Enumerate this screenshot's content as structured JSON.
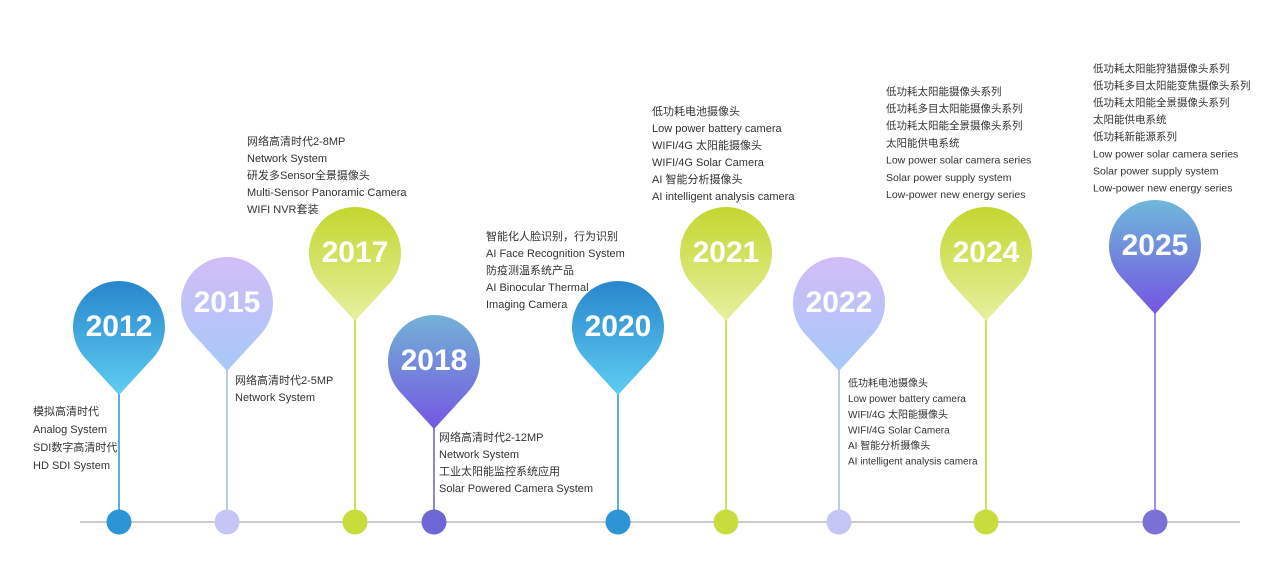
{
  "milestones": [
    {
      "year": "2012",
      "lines": [
        "模拟高清时代",
        "Analog System",
        "SDI数字高清时代",
        "HD SDI System"
      ]
    },
    {
      "year": "2015",
      "lines": [
        "网络高清时代2-5MP",
        "Network System"
      ]
    },
    {
      "year": "2017",
      "lines": [
        "网络高清时代2-8MP",
        "Network System",
        "研发多Sensor全景摄像头",
        "Multi-Sensor Panoramic Camera",
        "WIFI NVR套装"
      ]
    },
    {
      "year": "2018",
      "lines": [
        "网络高清时代2-12MP",
        "Network System",
        "工业太阳能监控系统应用",
        "Solar Powered Camera System"
      ]
    },
    {
      "year": "2020",
      "lines": [
        "智能化人脸识别，行为识别",
        "AI Face Recognition System",
        "防疫测温系统产品",
        "AI Binocular Thermal",
        "Imaging Camera"
      ]
    },
    {
      "year": "2021",
      "lines": [
        "低功耗电池摄像头",
        "Low power battery camera",
        "WIFI/4G 太阳能摄像头",
        "WIFI/4G Solar Camera",
        "AI 智能分析摄像头",
        "AI intelligent analysis camera"
      ]
    },
    {
      "year": "2022",
      "lines": [
        "低功耗电池摄像头",
        "Low power battery camera",
        "WIFI/4G 太阳能摄像头",
        "WIFI/4G Solar Camera",
        "AI 智能分析摄像头",
        "AI intelligent analysis camera"
      ]
    },
    {
      "year": "2024",
      "lines": [
        "低功耗太阳能摄像头系列",
        "低功耗多目太阳能摄像头系列",
        "低功耗太阳能全景摄像头系列",
        "太阳能供电系统",
        "Low power solar camera series",
        "Solar power supply system",
        "Low-power new energy series"
      ]
    },
    {
      "year": "2025",
      "lines": [
        "低功耗太阳能狩猎摄像头系列",
        "低功耗多目太阳能变焦摄像头系列",
        "低功耗太阳能全景摄像头系列",
        "太阳能供电系统",
        "低功耗新能源系列",
        "Low power solar camera series",
        "Solar power supply system",
        "Low-power new energy series"
      ]
    }
  ]
}
